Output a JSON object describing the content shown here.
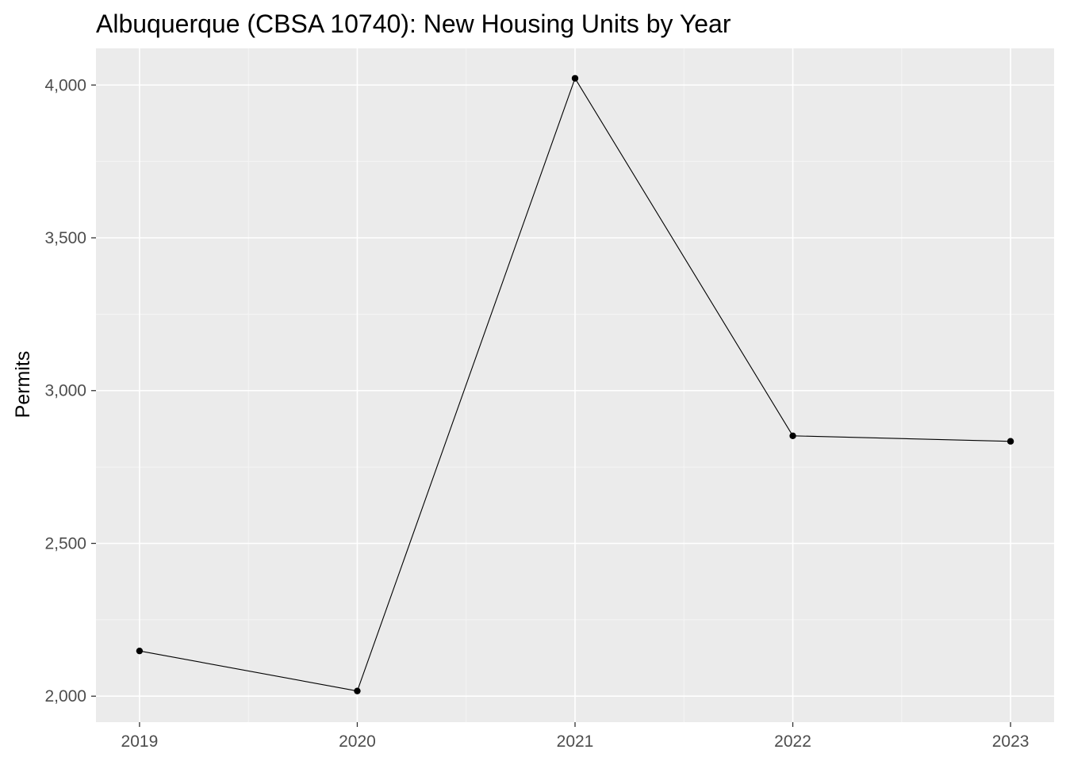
{
  "colors": {
    "panel_background": "#ebebeb",
    "grid_major": "#ffffff",
    "grid_minor": "#f5f5f5",
    "series": "#000000",
    "tick_text": "#4d4d4d",
    "tick_mark": "#333333"
  },
  "chart_data": {
    "type": "line",
    "title": "Albuquerque (CBSA 10740): New Housing Units by Year",
    "xlabel": "",
    "ylabel": "Permits",
    "x": [
      2019,
      2020,
      2021,
      2022,
      2023
    ],
    "x_tick_labels": [
      "2019",
      "2020",
      "2021",
      "2022",
      "2023"
    ],
    "y_ticks": [
      2000,
      2500,
      3000,
      3500,
      4000
    ],
    "y_tick_labels": [
      "2,000",
      "2,500",
      "3,000",
      "3,500",
      "4,000"
    ],
    "xlim": [
      2018.8,
      2023.2
    ],
    "ylim": [
      1915,
      4120
    ],
    "grid": true,
    "legend": "none",
    "series": [
      {
        "values": [
          2148,
          2017,
          4022,
          2852,
          2834
        ],
        "markers": true
      }
    ]
  }
}
